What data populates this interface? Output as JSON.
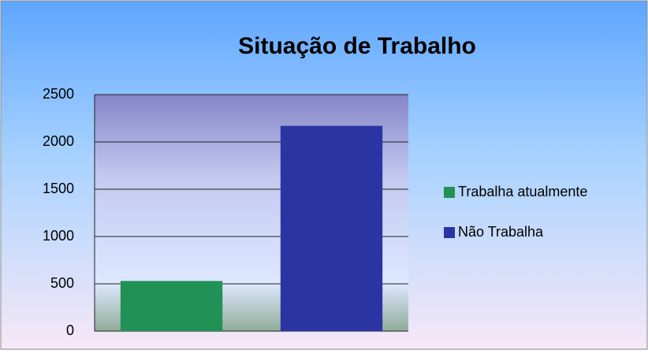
{
  "chart_data": {
    "type": "bar",
    "title": "Situação de Trabalho",
    "categories": [
      null
    ],
    "series": [
      {
        "name": "Trabalha atualmente",
        "color": "#229155",
        "values": [
          530
        ]
      },
      {
        "name": "Não Trabalha",
        "color": "#2a35a3",
        "values": [
          2170
        ]
      }
    ],
    "ylim": [
      0,
      2500
    ],
    "yticks": [
      0,
      500,
      1000,
      1500,
      2000,
      2500
    ],
    "grid": true,
    "legend": "right"
  }
}
